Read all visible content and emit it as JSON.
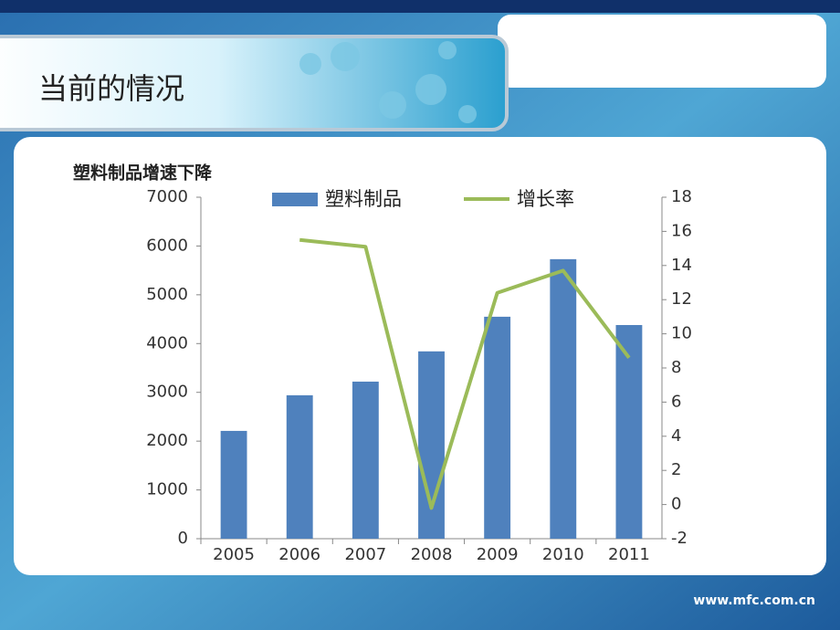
{
  "slide": {
    "title": "当前的情况",
    "footer": "www.mfc.com.cn"
  },
  "chart_data": {
    "type": "bar-line",
    "title": "塑料制品增速下降",
    "categories": [
      "2005",
      "2006",
      "2007",
      "2008",
      "2009",
      "2010",
      "2011"
    ],
    "series": [
      {
        "name": "塑料制品",
        "type": "bar",
        "color": "#4f81bd",
        "values": [
          2210,
          2940,
          3220,
          3840,
          4550,
          5730,
          4380
        ]
      },
      {
        "name": "增长率",
        "type": "line",
        "axis": "y2",
        "color": "#9bbb59",
        "values": [
          null,
          15.5,
          15.1,
          -0.2,
          12.4,
          13.7,
          8.6
        ]
      }
    ],
    "ylim": [
      0,
      7000
    ],
    "yticks": [
      0,
      1000,
      2000,
      3000,
      4000,
      5000,
      6000,
      7000
    ],
    "y2lim": [
      -2,
      18
    ],
    "y2ticks": [
      -2,
      0,
      2,
      4,
      6,
      8,
      10,
      12,
      14,
      16,
      18
    ],
    "grid": false,
    "legend": "top"
  }
}
